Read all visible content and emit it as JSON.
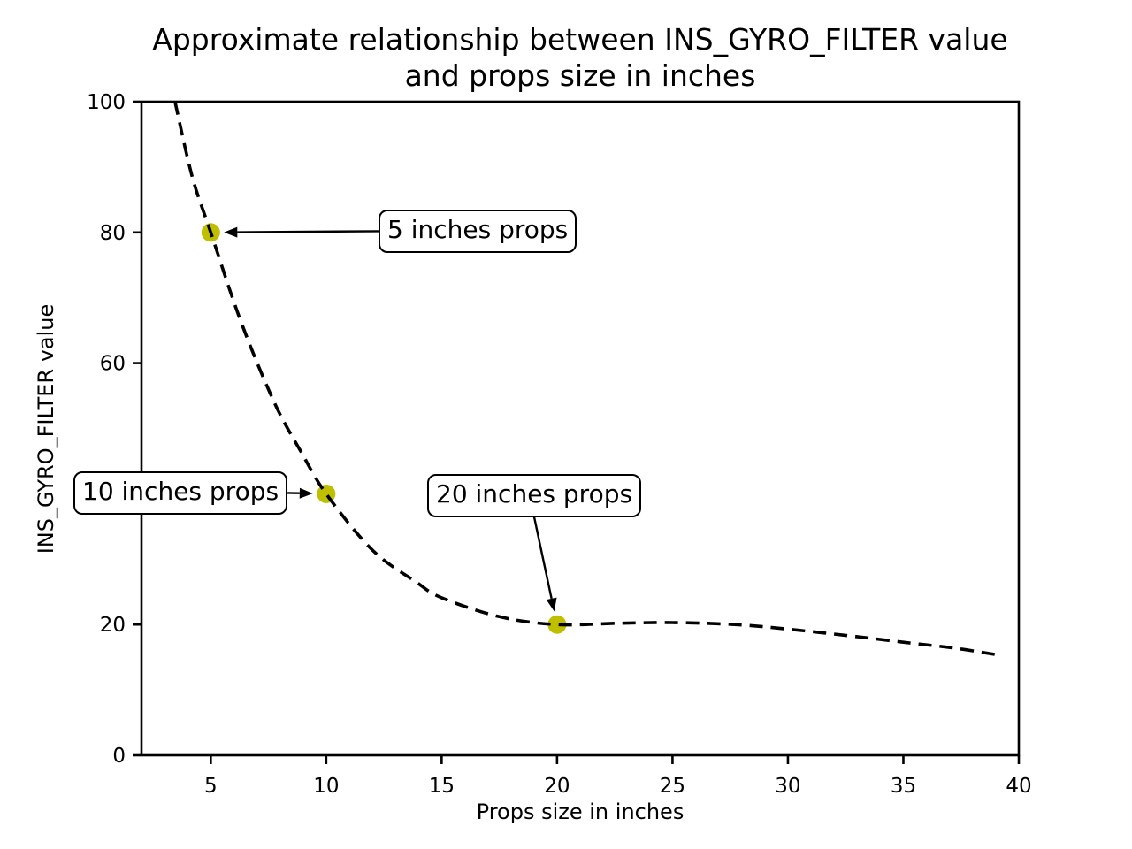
{
  "figure": {
    "background": "#ffffff",
    "text_color": "#000000"
  },
  "chart_data": {
    "type": "line",
    "title": "Approximate relationship between INS_GYRO_FILTER value\nand props size in inches",
    "xlabel": "Props size in inches",
    "ylabel": "INS_GYRO_FILTER value",
    "xlim": [
      2,
      40
    ],
    "ylim": [
      0,
      100
    ],
    "x_ticks": [
      5,
      10,
      15,
      20,
      25,
      30,
      35,
      40
    ],
    "y_ticks": [
      0,
      20,
      40,
      60,
      80,
      100
    ],
    "grid": false,
    "legend": "none",
    "series": [
      {
        "name": "INS_GYRO_FILTER vs props size",
        "style": "dashed",
        "color": "#000000",
        "x": [
          3.45,
          4.2,
          5,
          6.3,
          7.75,
          8.9,
          10,
          12,
          13.9,
          15,
          17.5,
          20,
          22.7,
          25,
          27.7,
          30,
          32.6,
          35,
          37.2,
          39
        ],
        "y": [
          100,
          88.5,
          80,
          66.4,
          54.0,
          46.5,
          40,
          31.4,
          26.5,
          24.1,
          21.2,
          20,
          20.2,
          20.3,
          20.0,
          19.3,
          18.3,
          17.3,
          16.4,
          15.4
        ]
      }
    ],
    "points": [
      {
        "x": 5,
        "y": 80,
        "color": "#bfbf00"
      },
      {
        "x": 10,
        "y": 40,
        "color": "#bfbf00"
      },
      {
        "x": 20,
        "y": 20,
        "color": "#bfbf00"
      }
    ],
    "annotations": [
      {
        "label": "5 inches props",
        "point": {
          "x": 5,
          "y": 80
        },
        "attach": "left"
      },
      {
        "label": "10 inches props",
        "point": {
          "x": 10,
          "y": 40
        },
        "attach": "right"
      },
      {
        "label": "20 inches props",
        "point": {
          "x": 20,
          "y": 20
        },
        "attach": "bottom"
      }
    ]
  }
}
